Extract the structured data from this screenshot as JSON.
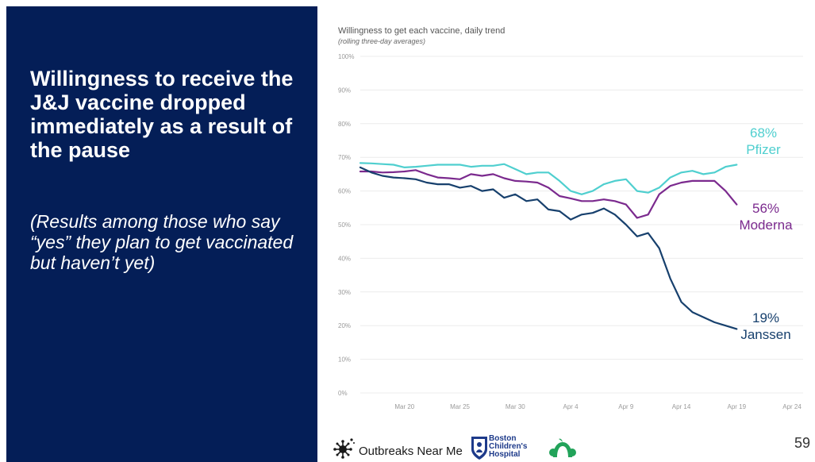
{
  "slide": {
    "headline": "Willingness to receive the J&J vaccine dropped immediately as a result of the pause",
    "subtext": "(Results among those who say “yes” they plan to get vaccinated but haven’t yet)",
    "page_number": "59",
    "background_color": "#041e57"
  },
  "footer": {
    "outbreaks_label": "Outbreaks Near Me",
    "bch_line1": "Boston",
    "bch_line2": "Children's",
    "bch_line3": "Hospital"
  },
  "chart_data": {
    "type": "line",
    "title": "Willingness to get each vaccine, daily trend",
    "subtitle": "(rolling three-day averages)",
    "x_ticks": [
      "Mar 20",
      "Mar 25",
      "Mar 30",
      "Apr 4",
      "Apr 9",
      "Apr 14",
      "Apr 19",
      "Apr 24"
    ],
    "x_tick_days": [
      20,
      25,
      30,
      35,
      40,
      45,
      50,
      55
    ],
    "x_range": [
      16,
      56
    ],
    "y_ticks": [
      "0%",
      "10%",
      "20%",
      "30%",
      "40%",
      "50%",
      "60%",
      "70%",
      "80%",
      "90%",
      "100%"
    ],
    "ylim": [
      0,
      100
    ],
    "grid": true,
    "series": [
      {
        "name": "Pfizer",
        "label_value": "68%",
        "color": "#4fcfcf",
        "x": [
          16,
          17,
          18,
          19,
          20,
          21,
          22,
          23,
          24,
          25,
          26,
          27,
          28,
          29,
          30,
          31,
          32,
          33,
          34,
          35,
          36,
          37,
          38,
          39,
          40,
          41,
          42,
          43,
          44,
          45,
          46,
          47,
          48,
          49,
          50
        ],
        "values": [
          68.3,
          68.2,
          68.0,
          67.8,
          67.0,
          67.2,
          67.5,
          67.8,
          67.8,
          67.8,
          67.2,
          67.5,
          67.5,
          68.0,
          66.5,
          65.0,
          65.5,
          65.5,
          63.0,
          60.0,
          59.0,
          60.0,
          62.0,
          63.0,
          63.5,
          60.0,
          59.5,
          61.0,
          64.0,
          65.5,
          66.0,
          65.0,
          65.5,
          67.2,
          67.8
        ]
      },
      {
        "name": "Moderna",
        "label_value": "56%",
        "color": "#7b2a8e",
        "x": [
          16,
          17,
          18,
          19,
          20,
          21,
          22,
          23,
          24,
          25,
          26,
          27,
          28,
          29,
          30,
          31,
          32,
          33,
          34,
          35,
          36,
          37,
          38,
          39,
          40,
          41,
          42,
          43,
          44,
          45,
          46,
          47,
          48,
          49,
          50
        ],
        "values": [
          65.8,
          65.8,
          65.5,
          65.6,
          65.8,
          66.2,
          65.0,
          64.0,
          63.8,
          63.5,
          65.0,
          64.5,
          65.0,
          63.8,
          63.0,
          62.8,
          62.5,
          61.0,
          58.5,
          57.8,
          57.0,
          57.0,
          57.5,
          57.0,
          56.0,
          52.0,
          53.0,
          59.0,
          61.5,
          62.5,
          63.0,
          63.0,
          63.0,
          60.0,
          56.0
        ]
      },
      {
        "name": "Janssen",
        "label_value": "19%",
        "color": "#17406d",
        "x": [
          16,
          17,
          18,
          19,
          20,
          21,
          22,
          23,
          24,
          25,
          26,
          27,
          28,
          29,
          30,
          31,
          32,
          33,
          34,
          35,
          36,
          37,
          38,
          39,
          40,
          41,
          42,
          43,
          44,
          45,
          46,
          47,
          48,
          49,
          50
        ],
        "values": [
          67.0,
          65.5,
          64.5,
          64.0,
          63.8,
          63.5,
          62.5,
          62.0,
          62.0,
          61.0,
          61.5,
          60.0,
          60.5,
          58.0,
          59.0,
          57.0,
          57.5,
          54.5,
          54.0,
          51.5,
          53.0,
          53.5,
          54.8,
          53.0,
          50.0,
          46.5,
          47.5,
          43.0,
          34.0,
          27.0,
          24.0,
          22.5,
          21.0,
          20.0,
          19.0
        ]
      }
    ]
  }
}
